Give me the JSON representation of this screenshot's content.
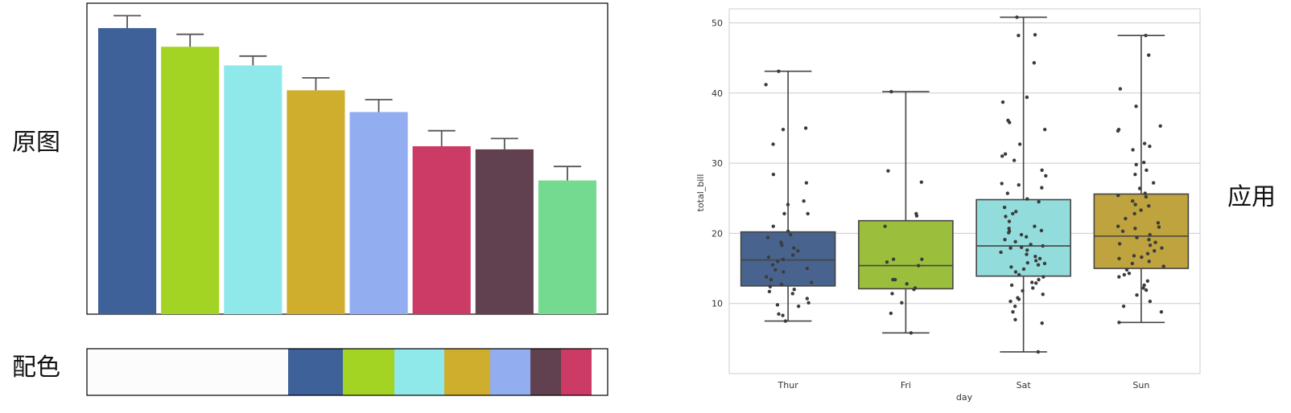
{
  "labels": {
    "original": "原图",
    "palette": "配色",
    "applied": "应用"
  },
  "palette": [
    "#fcfcfc",
    "#3e6199",
    "#a3d424",
    "#8fe9ea",
    "#ceae2c",
    "#92adf0",
    "#61404f",
    "#cc3b65"
  ],
  "chart_data": [
    {
      "type": "bar",
      "title": "",
      "categories": [
        "",
        "",
        "",
        "",
        "",
        "",
        "",
        ""
      ],
      "values": [
        0.92,
        0.86,
        0.8,
        0.72,
        0.65,
        0.54,
        0.53,
        0.43
      ],
      "errors": [
        0.04,
        0.04,
        0.03,
        0.04,
        0.04,
        0.05,
        0.035,
        0.045
      ],
      "colors": [
        "#3e6199",
        "#a3d424",
        "#8fe9ea",
        "#ceae2c",
        "#92adf0",
        "#cc3b65",
        "#61404f",
        "#74da8f"
      ],
      "ylim": [
        0,
        1.0
      ],
      "xlabel": "",
      "ylabel": ""
    },
    {
      "type": "box",
      "title": "",
      "xlabel": "day",
      "ylabel": "total_bill",
      "categories": [
        "Thur",
        "Fri",
        "Sat",
        "Sun"
      ],
      "ylim": [
        0,
        52
      ],
      "yticks": [
        "10",
        "20",
        "30",
        "40",
        "50"
      ],
      "boxes": [
        {
          "min": 7.5,
          "q1": 12.5,
          "median": 16.2,
          "q3": 20.2,
          "max": 43.1,
          "color": "#48638e"
        },
        {
          "min": 5.8,
          "q1": 12.1,
          "median": 15.4,
          "q3": 21.8,
          "max": 40.2,
          "color": "#9bbf3d"
        },
        {
          "min": 3.1,
          "q1": 13.9,
          "median": 18.2,
          "q3": 24.8,
          "max": 50.8,
          "color": "#93dcdc"
        },
        {
          "min": 7.3,
          "q1": 15.0,
          "median": 19.6,
          "q3": 25.6,
          "max": 48.2,
          "color": "#bea33f"
        }
      ],
      "points": [
        [
          27.2,
          22.8,
          19.4,
          16.3,
          15.0,
          13.4,
          18.3,
          20.3,
          17.9,
          14.8,
          12.4,
          10.1,
          34.8,
          32.7,
          24.1,
          16.0,
          11.7,
          9.6,
          8.5,
          43.1,
          41.2,
          35.0,
          28.4,
          24.6,
          22.8,
          21.0,
          19.8,
          18.7,
          17.5,
          16.9,
          16.6,
          15.5,
          14.5,
          13.8,
          13.0,
          12.7,
          12.0,
          11.4,
          10.7,
          9.8,
          8.3,
          7.5
        ],
        [
          28.9,
          27.3,
          22.5,
          21.0,
          16.3,
          15.9,
          15.4,
          13.4,
          12.8,
          12.0,
          11.4,
          10.1,
          8.6,
          5.8,
          40.2,
          22.8,
          16.3,
          13.4,
          12.2
        ],
        [
          50.8,
          48.3,
          48.2,
          44.3,
          39.4,
          38.7,
          36.1,
          34.8,
          32.7,
          31.3,
          30.4,
          29.0,
          28.2,
          27.1,
          26.5,
          25.7,
          24.9,
          24.5,
          23.7,
          23.1,
          22.4,
          21.7,
          21.0,
          20.7,
          20.4,
          20.1,
          19.8,
          19.5,
          19.1,
          18.8,
          18.4,
          18.2,
          17.9,
          17.6,
          17.3,
          17.0,
          16.7,
          16.4,
          16.1,
          15.8,
          15.5,
          15.2,
          14.9,
          14.5,
          14.1,
          13.8,
          13.4,
          13.0,
          12.6,
          12.2,
          11.8,
          11.3,
          10.8,
          10.3,
          9.6,
          8.8,
          7.7,
          7.2,
          3.1,
          35.8,
          31.0,
          26.9,
          22.8,
          20.3,
          18.0,
          15.7,
          12.9,
          10.6
        ],
        [
          48.2,
          45.4,
          40.6,
          38.1,
          35.3,
          34.8,
          32.8,
          32.4,
          31.9,
          30.1,
          29.8,
          28.4,
          27.2,
          26.4,
          25.7,
          25.2,
          24.6,
          24.1,
          23.3,
          22.8,
          22.1,
          21.5,
          21.0,
          20.7,
          20.3,
          19.8,
          19.4,
          19.1,
          18.7,
          18.3,
          17.9,
          17.5,
          17.1,
          16.8,
          16.4,
          16.0,
          15.7,
          15.3,
          14.8,
          14.3,
          13.8,
          13.2,
          12.6,
          11.9,
          11.2,
          10.3,
          9.6,
          8.8,
          7.3,
          34.6,
          29.0,
          25.4,
          23.9,
          20.9,
          18.5,
          16.6,
          14.1,
          12.2
        ]
      ]
    }
  ]
}
